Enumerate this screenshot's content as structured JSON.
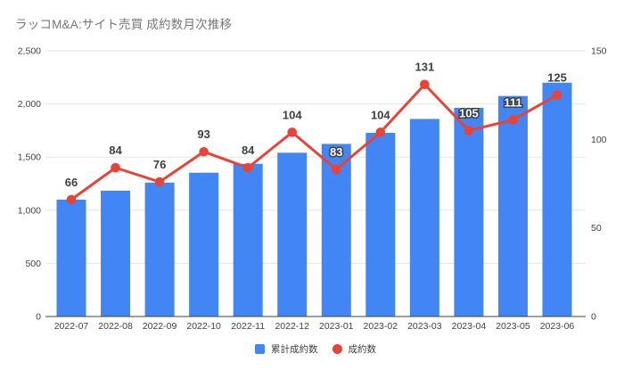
{
  "chart_data": {
    "type": "combo",
    "title": "ラッコM&A:サイト売買 成約数月次推移",
    "categories": [
      "2022-07",
      "2022-08",
      "2022-09",
      "2022-10",
      "2022-11",
      "2022-12",
      "2023-01",
      "2023-02",
      "2023-03",
      "2023-04",
      "2023-05",
      "2023-06"
    ],
    "series": [
      {
        "name": "累計成約数",
        "type": "bar",
        "axis": "left",
        "color": "#4285F4",
        "values": [
          1100,
          1184,
          1260,
          1353,
          1437,
          1541,
          1624,
          1728,
          1859,
          1964,
          2075,
          2200
        ]
      },
      {
        "name": "成約数",
        "type": "line",
        "axis": "right",
        "color": "#EA4335",
        "values": [
          66,
          84,
          76,
          93,
          84,
          104,
          83,
          104,
          131,
          105,
          111,
          125
        ],
        "data_labels": true
      }
    ],
    "left_axis": {
      "min": 0,
      "max": 2500,
      "tick_values": [
        0,
        500,
        1000,
        1500,
        2000,
        2500
      ],
      "tick_labels": [
        "0",
        "500",
        "1,000",
        "1,500",
        "2,000",
        "2,500"
      ]
    },
    "right_axis": {
      "min": 0,
      "max": 150,
      "tick_values": [
        0,
        50,
        100,
        150
      ],
      "tick_labels": [
        "0",
        "50",
        "100",
        "150"
      ]
    },
    "grid": true,
    "legend_position": "bottom",
    "colors": {
      "background": "#ffffff",
      "gridline": "#e6e6e6",
      "axis_line": "#424242",
      "tick_label": "#424242",
      "data_label_dark": "#3c4043",
      "data_label_light": "#ffffff",
      "title": "#757575"
    }
  }
}
